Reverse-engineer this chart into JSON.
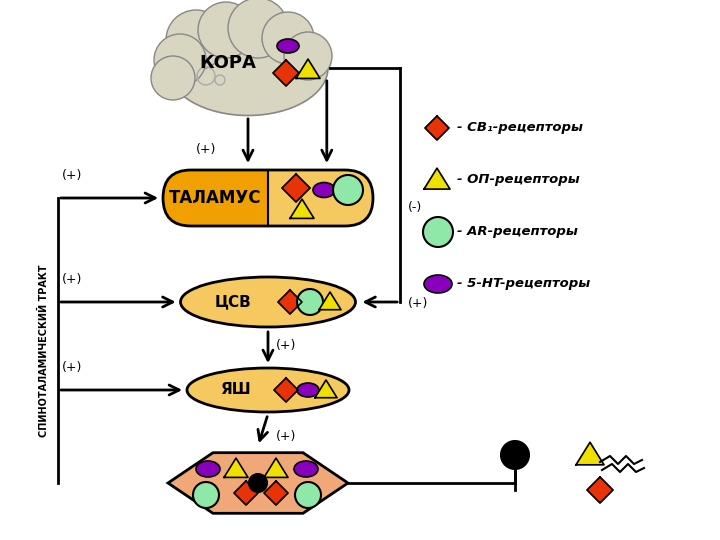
{
  "color_diamond": "#e83208",
  "color_triangle": "#f0e000",
  "color_circle": "#90e8a8",
  "color_pentagon": "#8800bb",
  "color_orange": "#f0a000",
  "color_orange_light": "#f5c860",
  "color_peach": "#f0a878",
  "color_cloud": "#d8d5c0",
  "label_kora": "КОРА",
  "label_talamus": "ТАЛАМУС",
  "label_csv": "ЦСВ",
  "label_yash": "ЯШ",
  "label_spino": "СПИНОТАЛАМИЧЕСКИЙ ТРАКТ"
}
